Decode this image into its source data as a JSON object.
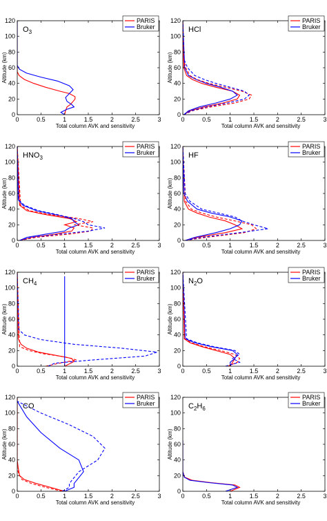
{
  "chart_data": [
    {
      "type": "line",
      "gas": "O",
      "gas_sub": "3",
      "xlabel": "Total column AVK and sensitivity",
      "ylabel": "Altitude (km)",
      "xlim": [
        0,
        3
      ],
      "ylim": [
        0,
        120
      ],
      "xticks": [
        0,
        0.5,
        1,
        1.5,
        2,
        2.5,
        3
      ],
      "yticks": [
        0,
        20,
        40,
        60,
        80,
        100,
        120
      ],
      "legend": [
        "PARIS",
        "Bruker"
      ],
      "series": [
        {
          "name": "PARIS",
          "color": "#ff0000",
          "dash": false,
          "x": [
            1.0,
            1.02,
            1.05,
            1.12,
            1.18,
            1.22,
            1.22,
            1.1,
            0.9,
            0.6,
            0.35,
            0.15,
            0.04,
            0.0,
            0.0
          ],
          "y": [
            0,
            5,
            10,
            13,
            17,
            20,
            23,
            27,
            30,
            35,
            40,
            45,
            50,
            55,
            120
          ]
        },
        {
          "name": "Bruker",
          "color": "#0000ff",
          "dash": false,
          "x": [
            1.0,
            0.92,
            1.05,
            1.2,
            1.15,
            1.05,
            1.02,
            1.1,
            1.18,
            1.1,
            0.85,
            0.5,
            0.2,
            0.05,
            0.0,
            0.0
          ],
          "y": [
            0,
            3,
            7,
            10,
            13,
            17,
            22,
            27,
            32,
            37,
            43,
            48,
            53,
            58,
            63,
            120
          ]
        }
      ]
    },
    {
      "type": "line",
      "gas": "HCl",
      "gas_sub": "",
      "xlabel": "Total column AVK and sensitivity",
      "ylabel": "Altitude (km)",
      "xlim": [
        0,
        3
      ],
      "ylim": [
        0,
        120
      ],
      "xticks": [
        0,
        0.5,
        1,
        1.5,
        2,
        2.5,
        3
      ],
      "yticks": [
        0,
        20,
        40,
        60,
        80,
        100,
        120
      ],
      "legend": [
        "PARIS",
        "Bruker"
      ],
      "series": [
        {
          "name": "PARIS",
          "color": "#ff0000",
          "dash": false,
          "x": [
            0.02,
            0.15,
            0.45,
            0.85,
            1.15,
            1.2,
            1.05,
            0.7,
            0.4,
            0.2,
            0.08,
            0.02,
            0.0
          ],
          "y": [
            0,
            5,
            10,
            15,
            20,
            25,
            30,
            35,
            40,
            45,
            50,
            60,
            120
          ]
        },
        {
          "name": "Bruker",
          "color": "#0000ff",
          "dash": false,
          "x": [
            0.02,
            0.12,
            0.35,
            0.7,
            1.0,
            1.15,
            1.05,
            0.8,
            0.5,
            0.28,
            0.12,
            0.04,
            0.0
          ],
          "y": [
            0,
            5,
            10,
            15,
            20,
            25,
            30,
            35,
            40,
            45,
            50,
            60,
            120
          ]
        },
        {
          "name": "PARIS",
          "color": "#ff0000",
          "dash": true,
          "x": [
            0.02,
            0.2,
            0.6,
            1.1,
            1.4,
            1.45,
            1.25,
            0.9,
            0.55,
            0.3,
            0.15,
            0.06,
            0.02,
            0.0
          ],
          "y": [
            0,
            5,
            10,
            15,
            20,
            25,
            30,
            35,
            40,
            45,
            50,
            60,
            70,
            120
          ]
        },
        {
          "name": "Bruker",
          "color": "#0000ff",
          "dash": true,
          "x": [
            0.02,
            0.18,
            0.5,
            0.95,
            1.3,
            1.4,
            1.3,
            1.0,
            0.7,
            0.45,
            0.25,
            0.1,
            0.03,
            0.0
          ],
          "y": [
            0,
            5,
            10,
            15,
            20,
            25,
            30,
            35,
            40,
            45,
            50,
            60,
            70,
            120
          ]
        }
      ]
    },
    {
      "type": "line",
      "gas": "HNO",
      "gas_sub": "3",
      "xlabel": "Total column AVK and sensitivity",
      "ylabel": "Altitude (km)",
      "xlim": [
        0,
        3
      ],
      "ylim": [
        0,
        120
      ],
      "xticks": [
        0,
        0.5,
        1,
        1.5,
        2,
        2.5,
        3
      ],
      "yticks": [
        0,
        20,
        40,
        60,
        80,
        100,
        120
      ],
      "legend": [
        "PARIS",
        "Bruker"
      ],
      "series": [
        {
          "name": "PARIS",
          "color": "#ff0000",
          "dash": false,
          "x": [
            0.05,
            0.3,
            0.8,
            1.15,
            1.2,
            1.0,
            1.25,
            1.1,
            0.6,
            0.2,
            0.05,
            0.0
          ],
          "y": [
            0,
            4,
            8,
            12,
            16,
            20,
            24,
            28,
            33,
            38,
            45,
            120
          ]
        },
        {
          "name": "Bruker",
          "color": "#0000ff",
          "dash": false,
          "x": [
            0.05,
            0.2,
            0.6,
            1.0,
            1.1,
            1.3,
            1.2,
            1.15,
            0.8,
            0.4,
            0.12,
            0.02,
            0.0
          ],
          "y": [
            0,
            4,
            8,
            12,
            16,
            20,
            24,
            28,
            33,
            38,
            45,
            52,
            120
          ]
        },
        {
          "name": "PARIS",
          "color": "#ff0000",
          "dash": true,
          "x": [
            0.05,
            0.4,
            1.1,
            1.55,
            1.6,
            1.2,
            1.6,
            1.3,
            0.7,
            0.25,
            0.07,
            0.0
          ],
          "y": [
            0,
            4,
            8,
            12,
            16,
            20,
            24,
            28,
            33,
            38,
            45,
            120
          ]
        },
        {
          "name": "Bruker",
          "color": "#0000ff",
          "dash": true,
          "x": [
            0.05,
            0.3,
            0.9,
            1.5,
            1.85,
            1.5,
            1.4,
            1.2,
            0.85,
            0.45,
            0.15,
            0.03,
            0.0
          ],
          "y": [
            0,
            4,
            8,
            12,
            16,
            20,
            24,
            28,
            33,
            38,
            45,
            52,
            120
          ]
        }
      ]
    },
    {
      "type": "line",
      "gas": "HF",
      "gas_sub": "",
      "xlabel": "Total column AVK and sensitivity",
      "ylabel": "Altitude (km)",
      "xlim": [
        0,
        3
      ],
      "ylim": [
        0,
        120
      ],
      "xticks": [
        0,
        0.5,
        1,
        1.5,
        2,
        2.5,
        3
      ],
      "yticks": [
        0,
        20,
        40,
        60,
        80,
        100,
        120
      ],
      "legend": [
        "PARIS",
        "Bruker"
      ],
      "series": [
        {
          "name": "PARIS",
          "color": "#ff0000",
          "dash": false,
          "x": [
            0.05,
            0.3,
            0.9,
            1.25,
            1.1,
            0.9,
            0.55,
            0.3,
            0.12,
            0.03,
            0.0
          ],
          "y": [
            0,
            4,
            10,
            15,
            20,
            25,
            30,
            35,
            40,
            50,
            120
          ]
        },
        {
          "name": "Bruker",
          "color": "#0000ff",
          "dash": false,
          "x": [
            0.05,
            0.25,
            0.7,
            1.0,
            1.2,
            1.25,
            1.0,
            0.6,
            0.3,
            0.1,
            0.02,
            0.0
          ],
          "y": [
            0,
            4,
            10,
            15,
            20,
            25,
            30,
            35,
            40,
            50,
            60,
            120
          ]
        },
        {
          "name": "PARIS",
          "color": "#ff0000",
          "dash": true,
          "x": [
            0.05,
            0.5,
            1.3,
            1.55,
            1.45,
            1.1,
            0.7,
            0.4,
            0.18,
            0.06,
            0.0
          ],
          "y": [
            0,
            4,
            10,
            15,
            20,
            25,
            30,
            35,
            40,
            50,
            120
          ]
        },
        {
          "name": "Bruker",
          "color": "#0000ff",
          "dash": true,
          "x": [
            0.05,
            0.4,
            1.2,
            1.8,
            1.5,
            1.25,
            1.1,
            0.75,
            0.4,
            0.15,
            0.05,
            0.0
          ],
          "y": [
            0,
            4,
            10,
            15,
            20,
            25,
            30,
            35,
            40,
            50,
            60,
            120
          ]
        }
      ]
    },
    {
      "type": "line",
      "gas": "CH",
      "gas_sub": "4",
      "xlabel": "Total column AVK and sensitivity",
      "ylabel": "Altitude (km)",
      "xlim": [
        0,
        3
      ],
      "ylim": [
        0,
        120
      ],
      "xticks": [
        0,
        0.5,
        1,
        1.5,
        2,
        2.5,
        3
      ],
      "yticks": [
        0,
        20,
        40,
        60,
        80,
        100,
        120
      ],
      "legend": [
        "PARIS",
        "Bruker"
      ],
      "series": [
        {
          "name": "PARIS",
          "color": "#ff0000",
          "dash": false,
          "x": [
            1.0,
            1.2,
            1.15,
            0.8,
            0.45,
            0.2,
            0.08,
            0.02,
            0.0
          ],
          "y": [
            0,
            6,
            10,
            14,
            18,
            23,
            28,
            35,
            120
          ]
        },
        {
          "name": "Bruker",
          "color": "#0000ff",
          "dash": false,
          "x": [
            1.0,
            1.0,
            1.0,
            1.0,
            1.0
          ],
          "y": [
            0,
            30,
            60,
            90,
            115
          ]
        },
        {
          "name": "PARIS",
          "color": "#ff0000",
          "dash": true,
          "x": [
            0.6,
            0.9,
            1.25,
            1.0,
            0.55,
            0.25,
            0.05,
            0.0
          ],
          "y": [
            0,
            4,
            8,
            12,
            16,
            20,
            25,
            120
          ]
        },
        {
          "name": "Bruker",
          "color": "#0000ff",
          "dash": true,
          "x": [
            0.65,
            0.8,
            1.6,
            2.7,
            2.95,
            2.2,
            1.2,
            0.5,
            0.15,
            0.03,
            0.0
          ],
          "y": [
            0,
            4,
            8,
            13,
            18,
            23,
            28,
            34,
            40,
            47,
            120
          ]
        }
      ]
    },
    {
      "type": "line",
      "gas": "N",
      "gas_sub": "2",
      "gas_tail": "O",
      "xlabel": "Total column AVK and sensitivity",
      "ylabel": "Altitude (km)",
      "xlim": [
        0,
        3
      ],
      "ylim": [
        0,
        120
      ],
      "xticks": [
        0,
        0.5,
        1,
        1.5,
        2,
        2.5,
        3
      ],
      "yticks": [
        0,
        20,
        40,
        60,
        80,
        100,
        120
      ],
      "legend": [
        "PARIS",
        "Bruker"
      ],
      "series": [
        {
          "name": "PARIS",
          "color": "#ff0000",
          "dash": false,
          "x": [
            1.0,
            1.05,
            1.1,
            1.0,
            0.7,
            0.4,
            0.15,
            0.03,
            0.0
          ],
          "y": [
            0,
            5,
            10,
            15,
            20,
            25,
            30,
            35,
            120
          ]
        },
        {
          "name": "Bruker",
          "color": "#0000ff",
          "dash": false,
          "x": [
            1.0,
            1.0,
            1.1,
            1.15,
            1.05,
            0.6,
            0.25,
            0.05,
            0.0
          ],
          "y": [
            0,
            5,
            10,
            15,
            20,
            25,
            30,
            35,
            120
          ]
        },
        {
          "name": "PARIS",
          "color": "#ff0000",
          "dash": true,
          "x": [
            0.95,
            1.15,
            1.2,
            1.1,
            0.8,
            0.45,
            0.18,
            0.04,
            0.0
          ],
          "y": [
            0,
            5,
            10,
            15,
            20,
            25,
            30,
            35,
            120
          ]
        },
        {
          "name": "Bruker",
          "color": "#0000ff",
          "dash": true,
          "x": [
            0.9,
            1.2,
            1.05,
            1.2,
            1.1,
            0.65,
            0.3,
            0.08,
            0.0
          ],
          "y": [
            0,
            5,
            10,
            15,
            20,
            25,
            30,
            35,
            120
          ]
        }
      ]
    },
    {
      "type": "line",
      "gas": "CO",
      "gas_sub": "",
      "xlabel": "Total column AVK and sensitivity",
      "ylabel": "Altitude (km)",
      "xlim": [
        0,
        3
      ],
      "ylim": [
        0,
        120
      ],
      "xticks": [
        0,
        0.5,
        1,
        1.5,
        2,
        2.5,
        3
      ],
      "yticks": [
        0,
        20,
        40,
        60,
        80,
        100,
        120
      ],
      "legend": [
        "PARIS",
        "Bruker"
      ],
      "series": [
        {
          "name": "PARIS",
          "color": "#ff0000",
          "dash": false,
          "x": [
            1.0,
            0.7,
            0.4,
            0.15,
            0.05,
            0.02,
            0.0,
            0.0
          ],
          "y": [
            0,
            5,
            10,
            15,
            20,
            30,
            40,
            120
          ]
        },
        {
          "name": "Bruker",
          "color": "#0000ff",
          "dash": false,
          "x": [
            1.0,
            1.2,
            1.2,
            1.4,
            1.3,
            0.9,
            0.5,
            0.2,
            0.0
          ],
          "y": [
            0,
            5,
            10,
            25,
            40,
            55,
            75,
            95,
            115
          ]
        },
        {
          "name": "PARIS",
          "color": "#ff0000",
          "dash": true,
          "x": [
            0.95,
            0.6,
            0.3,
            0.1,
            0.03,
            0.0,
            0.0
          ],
          "y": [
            0,
            5,
            10,
            15,
            22,
            30,
            120
          ]
        },
        {
          "name": "Bruker",
          "color": "#0000ff",
          "dash": true,
          "x": [
            0.95,
            1.1,
            1.1,
            1.3,
            1.7,
            1.85,
            1.6,
            1.1,
            0.5,
            0.0
          ],
          "y": [
            0,
            5,
            10,
            25,
            40,
            55,
            70,
            85,
            100,
            115
          ]
        }
      ]
    },
    {
      "type": "line",
      "gas": "C",
      "gas_sub": "2",
      "gas_tail": "H",
      "gas_sub2": "6",
      "xlabel": "Total column AVK and sensitivity",
      "ylabel": "Altitude (km)",
      "xlim": [
        0,
        3
      ],
      "ylim": [
        0,
        120
      ],
      "xticks": [
        0,
        0.5,
        1,
        1.5,
        2,
        2.5,
        3
      ],
      "yticks": [
        0,
        20,
        40,
        60,
        80,
        100,
        120
      ],
      "legend": [
        "PARIS",
        "Bruker"
      ],
      "series": [
        {
          "name": "PARIS",
          "color": "#ff0000",
          "dash": false,
          "x": [
            1.0,
            1.2,
            1.1,
            0.6,
            0.2,
            0.04,
            0.0,
            0.0
          ],
          "y": [
            0,
            5,
            8,
            11,
            14,
            18,
            25,
            65
          ]
        },
        {
          "name": "Bruker",
          "color": "#0000ff",
          "dash": false,
          "x": [
            0.9,
            1.15,
            1.05,
            0.55,
            0.15,
            0.03,
            0.0,
            0.0
          ],
          "y": [
            0,
            5,
            8,
            11,
            14,
            18,
            25,
            65
          ]
        }
      ]
    }
  ]
}
